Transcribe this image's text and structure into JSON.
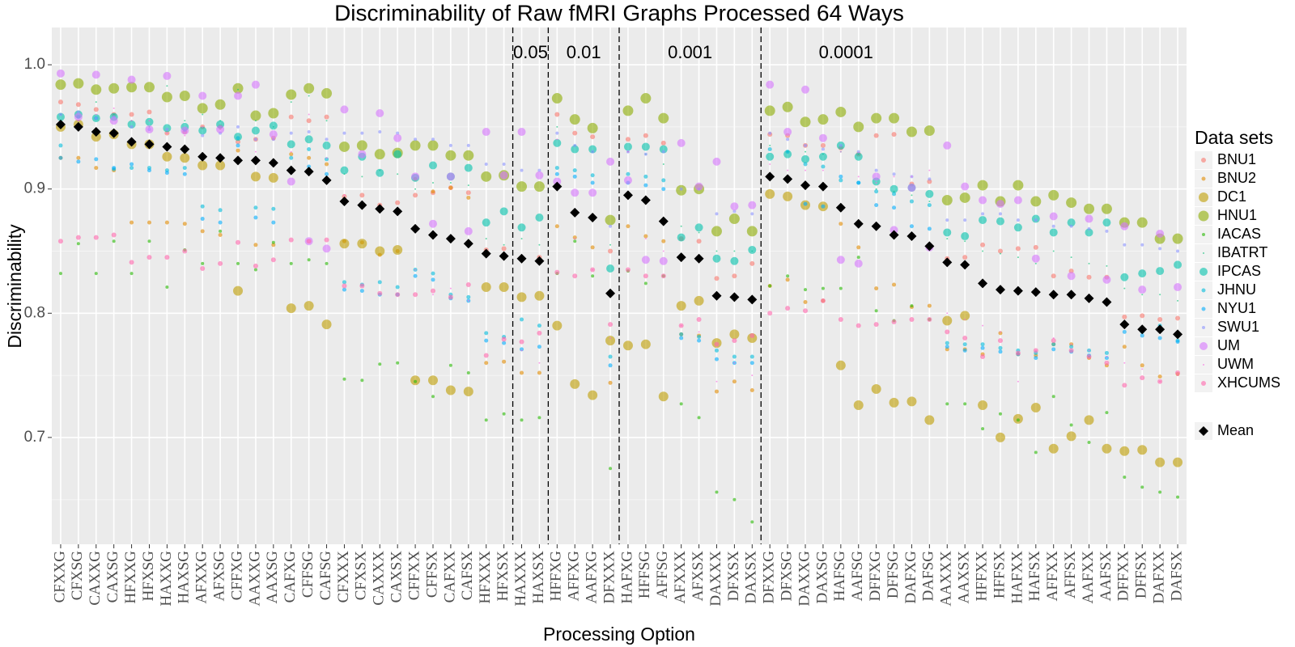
{
  "chart_data": {
    "type": "scatter",
    "title": "Discriminability of Raw fMRI Graphs Processed 64 Ways",
    "x_label": "Processing Option",
    "y_label": "Discriminability",
    "legend_title": "Data sets",
    "legend_position": "right",
    "grid": true,
    "minor_grid": true,
    "ylim": [
      0.614,
      1.03
    ],
    "yticks": [
      0.7,
      0.8,
      0.9,
      {
        "value": 1,
        "label": "1.0"
      }
    ],
    "vlines": [
      26.5,
      28.5,
      32.5,
      40.5
    ],
    "vline_labels": [
      "0.05",
      "0.01",
      "0.001",
      "0.0001"
    ],
    "categories": [
      "CFXXG",
      "CFXSG",
      "CAXXG",
      "CAXSG",
      "HFXXG",
      "HFXSG",
      "HAXXG",
      "HAXSG",
      "AFXXG",
      "AFXSG",
      "CFFXG",
      "AAXXG",
      "AAXSG",
      "CAFXG",
      "CFFSG",
      "CAFSG",
      "CFXXX",
      "CFXSX",
      "CAXXX",
      "CAXSX",
      "CFFXX",
      "CFFSX",
      "CAFXX",
      "CAFSX",
      "HFXXX",
      "HFXSX",
      "HAXXX",
      "HAXSX",
      "HFFXG",
      "AFFXG",
      "AAFXG",
      "DFXXX",
      "HAFXG",
      "HFFSG",
      "AFFSG",
      "AFXXX",
      "AFXSX",
      "DAXXX",
      "DFXSX",
      "DAXSX",
      "DFXXG",
      "DFXSG",
      "DAXXG",
      "DAXSG",
      "HAFSG",
      "AAFSG",
      "DFFXG",
      "DFFSG",
      "DAFXG",
      "DAFSG",
      "AAXXX",
      "AAXSX",
      "HFFXX",
      "HFFSX",
      "HAFXX",
      "HAFSX",
      "AFFXX",
      "AFFSX",
      "AAFXX",
      "AAFSX",
      "DFFXX",
      "DFFSX",
      "DAFXX",
      "DAFSX"
    ],
    "series": [
      {
        "name": "BNU1",
        "color": "#F8766D",
        "size": 3,
        "values": [
          0.97,
          0.968,
          0.964,
          0.96,
          0.96,
          0.962,
          0.945,
          0.946,
          0.95,
          0.95,
          0.938,
          0.94,
          0.941,
          0.958,
          0.955,
          0.958,
          0.894,
          0.895,
          0.887,
          0.889,
          0.895,
          0.897,
          0.901,
          0.897,
          0.851,
          0.852,
          0.845,
          0.845,
          0.96,
          0.945,
          0.942,
          0.85,
          0.94,
          0.943,
          0.937,
          0.86,
          0.858,
          0.828,
          0.83,
          0.84,
          0.944,
          0.943,
          0.935,
          0.935,
          0.933,
          0.928,
          0.943,
          0.944,
          0.904,
          0.906,
          0.844,
          0.845,
          0.855,
          0.85,
          0.852,
          0.853,
          0.83,
          0.834,
          0.829,
          0.829,
          0.797,
          0.798,
          0.795,
          0.796
        ]
      },
      {
        "name": "BNU2",
        "color": "#E18A00",
        "size": 2.5,
        "values": [
          0.925,
          0.925,
          0.917,
          0.915,
          0.873,
          0.873,
          0.873,
          0.872,
          0.866,
          0.863,
          0.931,
          0.855,
          0.855,
          0.928,
          0.925,
          0.92,
          0.858,
          0.857,
          0.847,
          0.85,
          0.908,
          0.898,
          0.901,
          0.893,
          0.76,
          0.761,
          0.752,
          0.752,
          0.87,
          0.861,
          0.853,
          0.744,
          0.87,
          0.862,
          0.858,
          0.783,
          0.782,
          0.737,
          0.745,
          0.738,
          0.822,
          0.827,
          0.809,
          0.81,
          0.872,
          0.853,
          0.82,
          0.823,
          0.805,
          0.806,
          0.771,
          0.771,
          0.767,
          0.784,
          0.767,
          0.766,
          0.775,
          0.775,
          0.764,
          0.758,
          0.773,
          0.758,
          0.749,
          0.751
        ]
      },
      {
        "name": "DC1",
        "color": "#BE9C00",
        "size": 6,
        "values": [
          0.95,
          0.952,
          0.942,
          0.944,
          0.936,
          0.936,
          0.926,
          0.925,
          0.919,
          0.919,
          0.818,
          0.91,
          0.909,
          0.804,
          0.806,
          0.791,
          0.856,
          0.856,
          0.85,
          0.851,
          0.746,
          0.746,
          0.738,
          0.737,
          0.821,
          0.821,
          0.813,
          0.814,
          0.79,
          0.743,
          0.734,
          0.778,
          0.774,
          0.775,
          0.733,
          0.806,
          0.81,
          0.776,
          0.783,
          0.78,
          0.896,
          0.894,
          0.887,
          0.886,
          0.758,
          0.726,
          0.739,
          0.728,
          0.729,
          0.714,
          0.794,
          0.798,
          0.726,
          0.7,
          0.715,
          0.724,
          0.691,
          0.701,
          0.714,
          0.691,
          0.689,
          0.69,
          0.68,
          0.68
        ]
      },
      {
        "name": "HNU1",
        "color": "#8CAB00",
        "size": 6.5,
        "values": [
          0.984,
          0.985,
          0.98,
          0.981,
          0.982,
          0.982,
          0.974,
          0.975,
          0.965,
          0.968,
          0.981,
          0.959,
          0.961,
          0.976,
          0.981,
          0.977,
          0.934,
          0.935,
          0.928,
          0.929,
          0.935,
          0.935,
          0.927,
          0.927,
          0.91,
          0.911,
          0.902,
          0.902,
          0.973,
          0.956,
          0.949,
          0.875,
          0.963,
          0.973,
          0.957,
          0.899,
          0.9,
          0.866,
          0.876,
          0.866,
          0.963,
          0.966,
          0.954,
          0.956,
          0.962,
          0.95,
          0.957,
          0.957,
          0.946,
          0.947,
          0.891,
          0.893,
          0.903,
          0.89,
          0.903,
          0.89,
          0.895,
          0.889,
          0.884,
          0.884,
          0.873,
          0.873,
          0.86,
          0.86
        ]
      },
      {
        "name": "IACAS",
        "color": "#24B700",
        "size": 2,
        "values": [
          0.832,
          0.856,
          0.832,
          0.858,
          0.832,
          0.858,
          0.821,
          0.851,
          0.84,
          0.866,
          0.84,
          0.835,
          0.857,
          0.84,
          0.843,
          0.84,
          0.747,
          0.746,
          0.759,
          0.76,
          0.745,
          0.733,
          0.758,
          0.752,
          0.714,
          0.719,
          0.714,
          0.716,
          0.832,
          0.858,
          0.83,
          0.675,
          0.834,
          0.824,
          0.83,
          0.727,
          0.716,
          0.656,
          0.65,
          0.632,
          0.822,
          0.83,
          0.819,
          0.82,
          0.82,
          0.845,
          0.802,
          0.794,
          0.806,
          0.795,
          0.727,
          0.727,
          0.707,
          0.719,
          0.714,
          0.688,
          0.733,
          0.71,
          0.696,
          0.72,
          0.668,
          0.66,
          0.656,
          0.652
        ]
      },
      {
        "name": "IBATRT",
        "color": "#00BE70",
        "size": 1,
        "values": [
          0.96,
          0.955,
          0.97,
          0.96,
          0.955,
          0.95,
          0.983,
          0.955,
          0.96,
          0.955,
          0.98,
          0.955,
          0.95,
          0.97,
          0.975,
          0.955,
          0.912,
          0.91,
          0.915,
          0.912,
          0.9,
          0.905,
          0.905,
          0.903,
          0.86,
          0.855,
          0.86,
          0.855,
          0.95,
          0.935,
          0.93,
          0.855,
          0.93,
          0.928,
          0.92,
          0.87,
          0.865,
          0.85,
          0.85,
          0.85,
          0.935,
          0.93,
          0.93,
          0.928,
          0.93,
          0.928,
          0.9,
          0.898,
          0.895,
          0.89,
          0.86,
          0.858,
          0.85,
          0.848,
          0.845,
          0.84,
          0.85,
          0.845,
          0.84,
          0.838,
          0.82,
          0.815,
          0.815,
          0.81
        ]
      },
      {
        "name": "IPCAS",
        "color": "#00C1AB",
        "size": 5,
        "values": [
          0.958,
          0.96,
          0.957,
          0.958,
          0.952,
          0.954,
          0.949,
          0.95,
          0.947,
          0.952,
          0.942,
          0.947,
          0.951,
          0.936,
          0.94,
          0.935,
          0.915,
          0.926,
          0.913,
          0.928,
          0.909,
          0.919,
          0.91,
          0.917,
          0.873,
          0.882,
          0.869,
          0.877,
          0.937,
          0.932,
          0.932,
          0.836,
          0.934,
          0.934,
          0.932,
          0.861,
          0.869,
          0.844,
          0.842,
          0.851,
          0.926,
          0.928,
          0.924,
          0.926,
          0.935,
          0.926,
          0.906,
          0.9,
          0.901,
          0.896,
          0.865,
          0.862,
          0.875,
          0.874,
          0.869,
          0.876,
          0.865,
          0.873,
          0.865,
          0.873,
          0.829,
          0.832,
          0.834,
          0.839
        ]
      },
      {
        "name": "JHNU",
        "color": "#00BBDA",
        "size": 2.5,
        "values": [
          0.935,
          0.958,
          0.957,
          0.916,
          0.917,
          0.917,
          0.915,
          0.917,
          0.886,
          0.883,
          0.941,
          0.885,
          0.884,
          0.925,
          0.932,
          0.924,
          0.825,
          0.823,
          0.825,
          0.821,
          0.835,
          0.832,
          0.815,
          0.813,
          0.784,
          0.781,
          0.795,
          0.79,
          0.917,
          0.915,
          0.911,
          0.765,
          0.912,
          0.91,
          0.907,
          0.783,
          0.781,
          0.77,
          0.765,
          0.765,
          0.932,
          0.93,
          0.92,
          0.918,
          0.907,
          0.905,
          0.898,
          0.896,
          0.89,
          0.887,
          0.776,
          0.775,
          0.775,
          0.772,
          0.77,
          0.768,
          0.775,
          0.773,
          0.77,
          0.768,
          0.792,
          0.785,
          0.79,
          0.778
        ]
      },
      {
        "name": "NYU1",
        "color": "#00ACFC",
        "size": 2.5,
        "values": [
          0.925,
          0.922,
          0.924,
          0.917,
          0.92,
          0.915,
          0.913,
          0.912,
          0.876,
          0.873,
          0.935,
          0.877,
          0.873,
          0.915,
          0.918,
          0.912,
          0.819,
          0.818,
          0.815,
          0.815,
          0.83,
          0.827,
          0.812,
          0.81,
          0.778,
          0.776,
          0.771,
          0.773,
          0.912,
          0.91,
          0.905,
          0.758,
          0.905,
          0.903,
          0.9,
          0.78,
          0.778,
          0.763,
          0.76,
          0.76,
          0.91,
          0.908,
          0.888,
          0.886,
          0.91,
          0.905,
          0.887,
          0.885,
          0.87,
          0.868,
          0.773,
          0.77,
          0.772,
          0.769,
          0.767,
          0.764,
          0.771,
          0.769,
          0.766,
          0.764,
          0.785,
          0.782,
          0.78,
          0.777
        ]
      },
      {
        "name": "SWU1",
        "color": "#8B93FF",
        "size": 2,
        "values": [
          0.96,
          0.962,
          0.957,
          0.958,
          0.95,
          0.948,
          0.948,
          0.947,
          0.943,
          0.945,
          0.95,
          0.94,
          0.94,
          0.945,
          0.946,
          0.94,
          0.945,
          0.945,
          0.946,
          0.945,
          0.94,
          0.94,
          0.935,
          0.935,
          0.92,
          0.92,
          0.915,
          0.915,
          0.945,
          0.935,
          0.93,
          0.87,
          0.93,
          0.928,
          0.93,
          0.9,
          0.9,
          0.88,
          0.882,
          0.88,
          0.945,
          0.94,
          0.935,
          0.932,
          0.935,
          0.93,
          0.915,
          0.912,
          0.91,
          0.908,
          0.875,
          0.875,
          0.88,
          0.88,
          0.875,
          0.875,
          0.87,
          0.87,
          0.868,
          0.866,
          0.855,
          0.855,
          0.852,
          0.85
        ]
      },
      {
        "name": "UM",
        "color": "#D575FE",
        "size": 5,
        "values": [
          0.993,
          0.958,
          0.992,
          0.955,
          0.988,
          0.948,
          0.991,
          0.947,
          0.975,
          0.948,
          0.975,
          0.984,
          0.944,
          0.906,
          0.858,
          0.852,
          0.964,
          0.928,
          0.961,
          0.941,
          0.91,
          0.872,
          0.91,
          0.866,
          0.946,
          0.911,
          0.946,
          0.911,
          0.906,
          0.897,
          0.897,
          0.922,
          0.907,
          0.843,
          0.842,
          0.937,
          0.902,
          0.922,
          0.886,
          0.887,
          0.984,
          0.946,
          0.98,
          0.941,
          0.843,
          0.84,
          0.91,
          0.867,
          0.901,
          0.853,
          0.935,
          0.902,
          0.891,
          0.888,
          0.891,
          0.844,
          0.878,
          0.83,
          0.876,
          0.827,
          0.87,
          0.819,
          0.864,
          0.821
        ]
      },
      {
        "name": "UWM",
        "color": "#F962DD",
        "size": 1,
        "values": [
          0.95,
          0.955,
          0.96,
          0.965,
          0.955,
          0.955,
          0.945,
          0.943,
          0.95,
          0.948,
          0.925,
          0.93,
          0.94,
          0.93,
          0.96,
          0.925,
          0.895,
          0.89,
          0.885,
          0.885,
          0.835,
          0.815,
          0.82,
          0.81,
          0.85,
          0.78,
          0.77,
          0.76,
          0.94,
          0.86,
          0.835,
          0.78,
          0.93,
          0.86,
          0.85,
          0.79,
          0.785,
          0.745,
          0.76,
          0.75,
          0.92,
          0.915,
          0.915,
          0.915,
          0.93,
          0.91,
          0.905,
          0.91,
          0.91,
          0.915,
          0.8,
          0.795,
          0.79,
          0.785,
          0.745,
          0.77,
          0.78,
          0.775,
          0.77,
          0.765,
          0.76,
          0.755,
          0.745,
          0.75
        ]
      },
      {
        "name": "XHCUMS",
        "color": "#FF65AC",
        "size": 3,
        "values": [
          0.858,
          0.861,
          0.861,
          0.863,
          0.841,
          0.845,
          0.845,
          0.85,
          0.836,
          0.84,
          0.857,
          0.838,
          0.843,
          0.859,
          0.858,
          0.859,
          0.822,
          0.822,
          0.816,
          0.815,
          0.815,
          0.818,
          0.813,
          0.823,
          0.766,
          0.779,
          0.777,
          0.784,
          0.833,
          0.83,
          0.835,
          0.791,
          0.835,
          0.83,
          0.83,
          0.79,
          0.795,
          0.775,
          0.778,
          0.782,
          0.8,
          0.804,
          0.802,
          0.81,
          0.795,
          0.79,
          0.791,
          0.793,
          0.795,
          0.795,
          0.785,
          0.78,
          0.765,
          0.778,
          0.768,
          0.77,
          0.778,
          0.77,
          0.765,
          0.76,
          0.742,
          0.748,
          0.745,
          0.752
        ]
      },
      {
        "name": "Mean",
        "color": "#000000",
        "size": 5,
        "shape": "diamond",
        "values": [
          0.952,
          0.95,
          0.946,
          0.945,
          0.938,
          0.936,
          0.934,
          0.932,
          0.926,
          0.925,
          0.923,
          0.923,
          0.921,
          0.915,
          0.914,
          0.907,
          0.89,
          0.887,
          0.884,
          0.882,
          0.868,
          0.863,
          0.86,
          0.856,
          0.848,
          0.846,
          0.844,
          0.842,
          0.902,
          0.881,
          0.877,
          0.816,
          0.895,
          0.891,
          0.874,
          0.845,
          0.844,
          0.814,
          0.813,
          0.811,
          0.91,
          0.908,
          0.903,
          0.902,
          0.885,
          0.872,
          0.87,
          0.863,
          0.862,
          0.854,
          0.841,
          0.839,
          0.824,
          0.819,
          0.818,
          0.817,
          0.815,
          0.815,
          0.812,
          0.809,
          0.791,
          0.787,
          0.787,
          0.783
        ]
      }
    ]
  }
}
